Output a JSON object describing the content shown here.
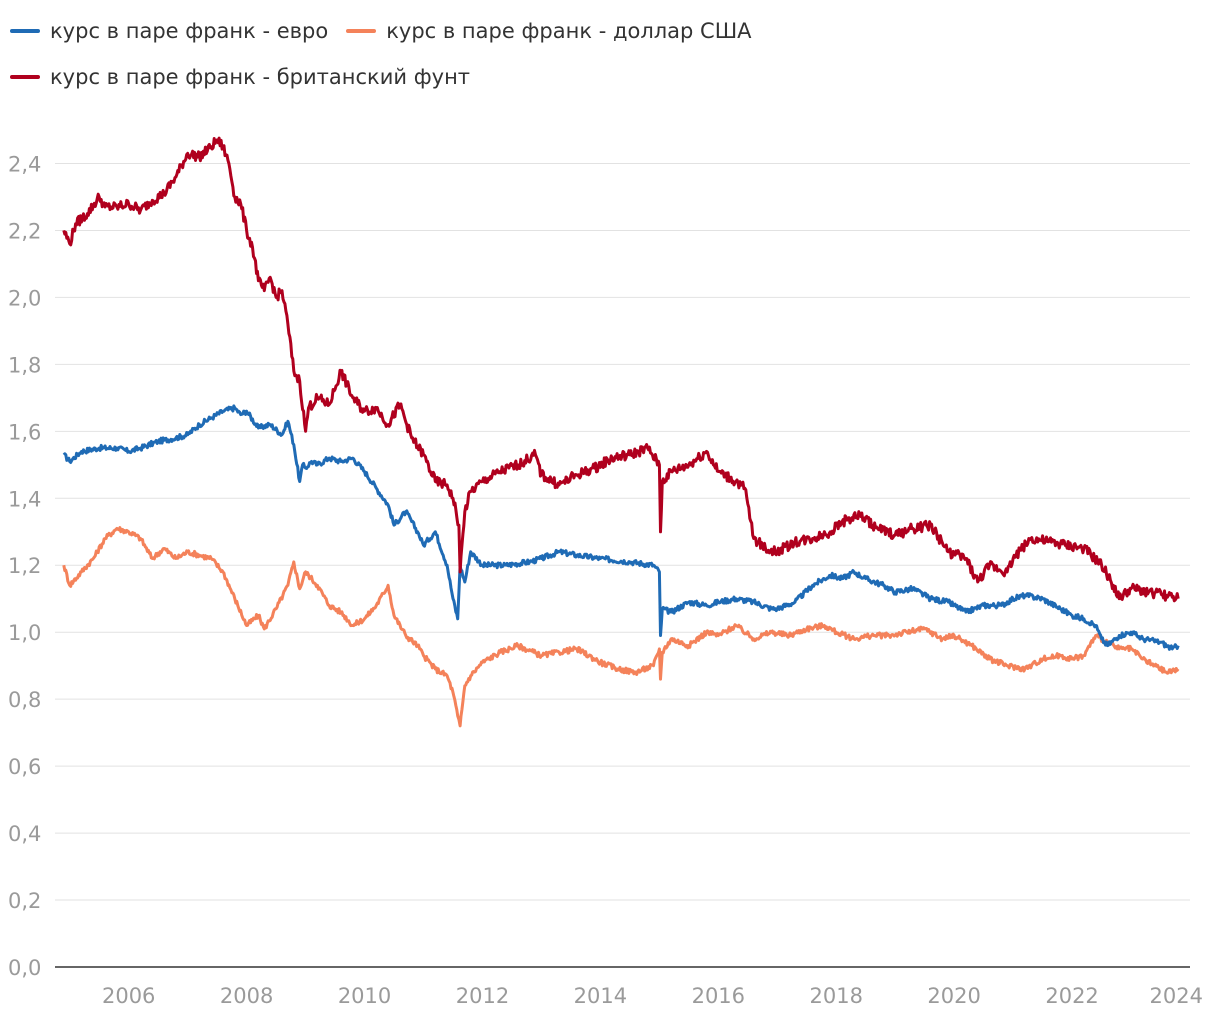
{
  "chart_data": {
    "type": "line",
    "title": "",
    "xlabel": "",
    "ylabel": "",
    "xlim": [
      2004.75,
      2024.0
    ],
    "ylim": [
      0,
      2.5
    ],
    "yticks": [
      "0,0",
      "0,2",
      "0,4",
      "0,6",
      "0,8",
      "1,0",
      "1,2",
      "1,4",
      "1,6",
      "1,8",
      "2,0",
      "2,2",
      "2,4"
    ],
    "ytick_values": [
      0,
      0.2,
      0.4,
      0.6,
      0.8,
      1.0,
      1.2,
      1.4,
      1.6,
      1.8,
      2.0,
      2.2,
      2.4
    ],
    "xticks": [
      "2006",
      "2008",
      "2010",
      "2012",
      "2014",
      "2016",
      "2018",
      "2020",
      "2022",
      "2024"
    ],
    "xtick_values": [
      2006,
      2008,
      2010,
      2012,
      2014,
      2016,
      2018,
      2020,
      2022,
      2024
    ],
    "grid": true,
    "legend_position": "top-left",
    "series": [
      {
        "name": "курс в паре франк - евро",
        "color": "#1f6bb5",
        "x": [
          2004.9,
          2005.0,
          2005.2,
          2005.5,
          2005.8,
          2006.0,
          2006.2,
          2006.5,
          2006.8,
          2007.0,
          2007.2,
          2007.4,
          2007.6,
          2007.8,
          2007.9,
          2008.0,
          2008.2,
          2008.4,
          2008.6,
          2008.7,
          2008.8,
          2008.9,
          2008.95,
          2009.0,
          2009.1,
          2009.2,
          2009.4,
          2009.6,
          2009.8,
          2010.0,
          2010.2,
          2010.4,
          2010.5,
          2010.7,
          2010.9,
          2011.0,
          2011.2,
          2011.4,
          2011.5,
          2011.58,
          2011.62,
          2011.7,
          2011.8,
          2012.0,
          2012.4,
          2012.8,
          2013.0,
          2013.3,
          2013.6,
          2014.0,
          2014.5,
          2014.9,
          2015.0,
          2015.02,
          2015.05,
          2015.2,
          2015.5,
          2015.8,
          2016.0,
          2016.3,
          2016.6,
          2016.9,
          2017.0,
          2017.3,
          2017.6,
          2017.9,
          2018.1,
          2018.3,
          2018.5,
          2018.8,
          2019.0,
          2019.3,
          2019.6,
          2019.9,
          2020.2,
          2020.5,
          2020.8,
          2021.0,
          2021.2,
          2021.5,
          2021.8,
          2022.0,
          2022.2,
          2022.4,
          2022.5,
          2022.6,
          2022.8,
          2023.0,
          2023.2,
          2023.5,
          2023.7,
          2023.8
        ],
        "values": [
          1.53,
          1.51,
          1.54,
          1.55,
          1.55,
          1.54,
          1.55,
          1.57,
          1.58,
          1.59,
          1.62,
          1.64,
          1.66,
          1.67,
          1.65,
          1.66,
          1.61,
          1.62,
          1.59,
          1.63,
          1.56,
          1.45,
          1.5,
          1.49,
          1.51,
          1.5,
          1.52,
          1.51,
          1.52,
          1.48,
          1.43,
          1.38,
          1.32,
          1.36,
          1.3,
          1.26,
          1.3,
          1.2,
          1.1,
          1.04,
          1.2,
          1.15,
          1.24,
          1.2,
          1.2,
          1.21,
          1.22,
          1.24,
          1.23,
          1.22,
          1.21,
          1.2,
          1.18,
          0.99,
          1.07,
          1.06,
          1.09,
          1.08,
          1.09,
          1.1,
          1.09,
          1.07,
          1.07,
          1.09,
          1.14,
          1.17,
          1.16,
          1.18,
          1.16,
          1.14,
          1.12,
          1.13,
          1.1,
          1.09,
          1.06,
          1.08,
          1.08,
          1.1,
          1.11,
          1.1,
          1.07,
          1.05,
          1.04,
          1.02,
          0.98,
          0.96,
          0.99,
          1.0,
          0.98,
          0.97,
          0.95,
          0.96
        ]
      },
      {
        "name": "курс в паре франк - доллар США",
        "color": "#f4825a",
        "x": [
          2004.9,
          2005.0,
          2005.2,
          2005.4,
          2005.6,
          2005.8,
          2006.0,
          2006.2,
          2006.4,
          2006.6,
          2006.8,
          2007.0,
          2007.2,
          2007.4,
          2007.6,
          2007.8,
          2008.0,
          2008.2,
          2008.3,
          2008.5,
          2008.7,
          2008.8,
          2008.9,
          2009.0,
          2009.2,
          2009.4,
          2009.6,
          2009.8,
          2010.0,
          2010.2,
          2010.4,
          2010.5,
          2010.7,
          2010.9,
          2011.0,
          2011.2,
          2011.4,
          2011.5,
          2011.58,
          2011.62,
          2011.7,
          2011.8,
          2012.0,
          2012.3,
          2012.6,
          2013.0,
          2013.3,
          2013.6,
          2014.0,
          2014.3,
          2014.6,
          2014.9,
          2015.0,
          2015.02,
          2015.05,
          2015.2,
          2015.5,
          2015.8,
          2016.0,
          2016.3,
          2016.6,
          2016.9,
          2017.2,
          2017.5,
          2017.8,
          2018.0,
          2018.3,
          2018.6,
          2018.9,
          2019.2,
          2019.5,
          2019.8,
          2020.0,
          2020.3,
          2020.6,
          2020.9,
          2021.2,
          2021.5,
          2021.8,
          2022.0,
          2022.2,
          2022.4,
          2022.6,
          2022.8,
          2023.0,
          2023.2,
          2023.4,
          2023.6,
          2023.8
        ],
        "values": [
          1.2,
          1.14,
          1.18,
          1.22,
          1.28,
          1.31,
          1.3,
          1.28,
          1.22,
          1.25,
          1.22,
          1.24,
          1.23,
          1.22,
          1.18,
          1.1,
          1.02,
          1.05,
          1.01,
          1.07,
          1.14,
          1.21,
          1.13,
          1.18,
          1.14,
          1.08,
          1.06,
          1.02,
          1.04,
          1.08,
          1.14,
          1.05,
          0.99,
          0.96,
          0.93,
          0.89,
          0.87,
          0.82,
          0.75,
          0.72,
          0.84,
          0.87,
          0.91,
          0.94,
          0.96,
          0.93,
          0.94,
          0.95,
          0.91,
          0.89,
          0.88,
          0.9,
          0.95,
          0.86,
          0.94,
          0.98,
          0.96,
          1.0,
          0.99,
          1.02,
          0.98,
          1.0,
          0.99,
          1.01,
          1.02,
          1.0,
          0.98,
          0.99,
          0.99,
          1.0,
          1.01,
          0.98,
          0.99,
          0.96,
          0.92,
          0.9,
          0.89,
          0.92,
          0.93,
          0.92,
          0.93,
          0.99,
          0.97,
          0.95,
          0.95,
          0.92,
          0.9,
          0.88,
          0.89
        ]
      },
      {
        "name": "курс в паре франк - британский фунт",
        "color": "#b0001e",
        "x": [
          2004.9,
          2005.0,
          2005.1,
          2005.3,
          2005.5,
          2005.6,
          2005.8,
          2006.0,
          2006.2,
          2006.4,
          2006.6,
          2006.8,
          2007.0,
          2007.2,
          2007.4,
          2007.5,
          2007.6,
          2007.7,
          2007.8,
          2007.9,
          2008.0,
          2008.1,
          2008.2,
          2008.3,
          2008.4,
          2008.5,
          2008.6,
          2008.7,
          2008.8,
          2008.9,
          2009.0,
          2009.05,
          2009.2,
          2009.4,
          2009.6,
          2009.8,
          2010.0,
          2010.2,
          2010.4,
          2010.6,
          2010.8,
          2011.0,
          2011.2,
          2011.4,
          2011.5,
          2011.6,
          2011.62,
          2011.7,
          2011.8,
          2012.0,
          2012.3,
          2012.6,
          2012.9,
          2013.0,
          2013.3,
          2013.6,
          2013.9,
          2014.2,
          2014.5,
          2014.8,
          2015.0,
          2015.02,
          2015.05,
          2015.2,
          2015.5,
          2015.8,
          2016.0,
          2016.3,
          2016.45,
          2016.6,
          2016.8,
          2017.0,
          2017.3,
          2017.6,
          2017.9,
          2018.1,
          2018.4,
          2018.7,
          2019.0,
          2019.3,
          2019.6,
          2019.9,
          2020.2,
          2020.4,
          2020.6,
          2020.9,
          2021.0,
          2021.3,
          2021.6,
          2021.9,
          2022.2,
          2022.5,
          2022.7,
          2022.8,
          2023.0,
          2023.3,
          2023.6,
          2023.8
        ],
        "values": [
          2.2,
          2.16,
          2.22,
          2.25,
          2.3,
          2.27,
          2.27,
          2.28,
          2.26,
          2.29,
          2.31,
          2.36,
          2.43,
          2.42,
          2.45,
          2.47,
          2.45,
          2.4,
          2.3,
          2.28,
          2.2,
          2.15,
          2.05,
          2.02,
          2.06,
          2.0,
          2.02,
          1.92,
          1.78,
          1.75,
          1.6,
          1.67,
          1.7,
          1.68,
          1.78,
          1.7,
          1.66,
          1.67,
          1.62,
          1.68,
          1.58,
          1.53,
          1.45,
          1.44,
          1.4,
          1.32,
          1.18,
          1.36,
          1.42,
          1.45,
          1.48,
          1.5,
          1.53,
          1.47,
          1.44,
          1.47,
          1.49,
          1.52,
          1.53,
          1.55,
          1.5,
          1.3,
          1.45,
          1.48,
          1.5,
          1.54,
          1.48,
          1.45,
          1.43,
          1.28,
          1.25,
          1.24,
          1.27,
          1.28,
          1.3,
          1.33,
          1.35,
          1.31,
          1.29,
          1.31,
          1.32,
          1.24,
          1.22,
          1.15,
          1.2,
          1.18,
          1.22,
          1.28,
          1.27,
          1.26,
          1.25,
          1.2,
          1.14,
          1.1,
          1.13,
          1.12,
          1.11,
          1.1
        ]
      }
    ]
  }
}
